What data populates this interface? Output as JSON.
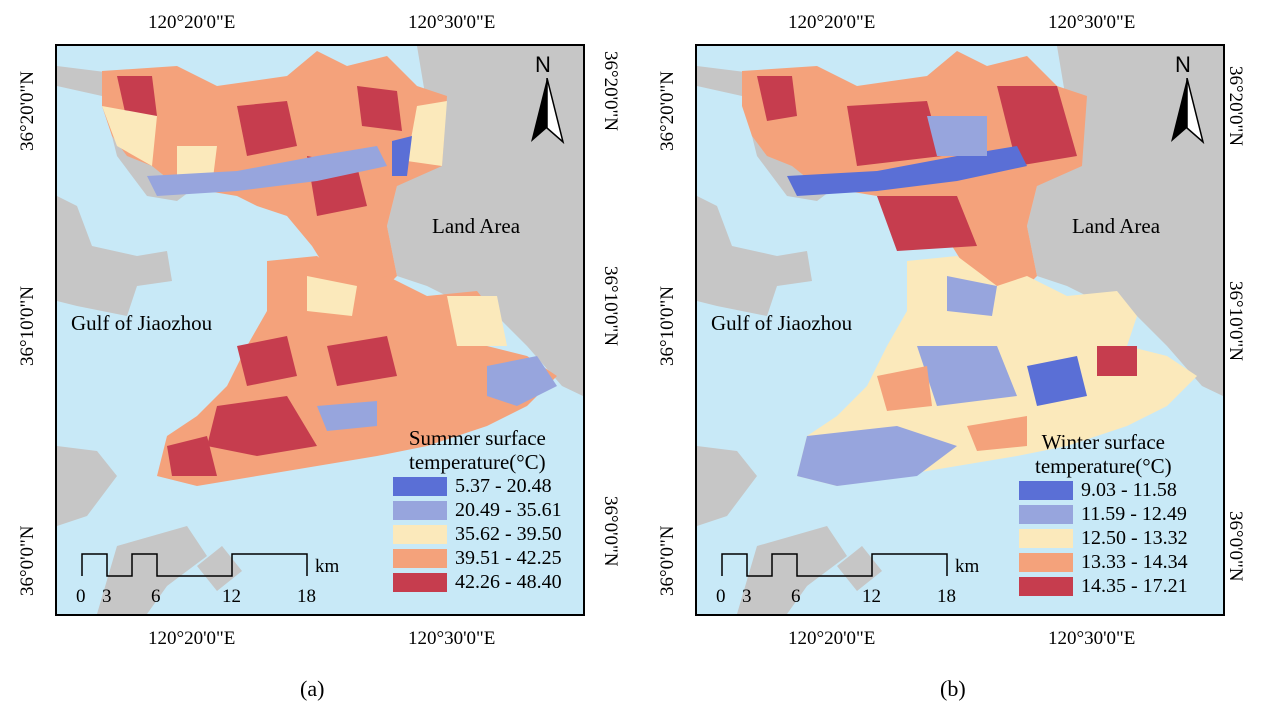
{
  "panels": [
    {
      "label": "(a)",
      "lon_labels": [
        "120°20'0\"E",
        "120°30'0\"E"
      ],
      "lat_labels": [
        "36°20'0\"N",
        "36°10'0\"N",
        "36°0'0\"N"
      ],
      "north": "N",
      "land_label": "Land Area",
      "gulf_label": "Gulf of Jiaozhou",
      "legend": {
        "title_line1": "Summer surface",
        "title_line2": "temperature(°C)",
        "classes": [
          {
            "range": "5.37 - 20.48",
            "color": "#5a6fd6"
          },
          {
            "range": "20.49 - 35.61",
            "color": "#97a5dd"
          },
          {
            "range": "35.62 - 39.50",
            "color": "#fbe9bb"
          },
          {
            "range": "39.51 - 42.25",
            "color": "#f4a27b"
          },
          {
            "range": "42.26 - 48.40",
            "color": "#c63d4e"
          }
        ]
      },
      "scale": {
        "ticks": [
          "0",
          "3",
          "6",
          "12",
          "18"
        ],
        "unit": "km"
      }
    },
    {
      "label": "(b)",
      "lon_labels": [
        "120°20'0\"E",
        "120°30'0\"E"
      ],
      "lat_labels": [
        "36°20'0\"N",
        "36°10'0\"N",
        "36°0'0\"N"
      ],
      "north": "N",
      "land_label": "Land Area",
      "gulf_label": "Gulf of Jiaozhou",
      "legend": {
        "title_line1": "Winter surface",
        "title_line2": "temperature(°C)",
        "classes": [
          {
            "range": "9.03 - 11.58",
            "color": "#5a6fd6"
          },
          {
            "range": "11.59 - 12.49",
            "color": "#97a5dd"
          },
          {
            "range": "12.50 - 13.32",
            "color": "#fbe9bb"
          },
          {
            "range": "13.33 - 14.34",
            "color": "#f4a27b"
          },
          {
            "range": "14.35 - 17.21",
            "color": "#c63d4e"
          }
        ]
      },
      "scale": {
        "ticks": [
          "0",
          "3",
          "6",
          "12",
          "18"
        ],
        "unit": "km"
      }
    }
  ],
  "colors": {
    "water": "#c8e9f7",
    "land": "#c6c6c6",
    "frame": "#000000"
  }
}
